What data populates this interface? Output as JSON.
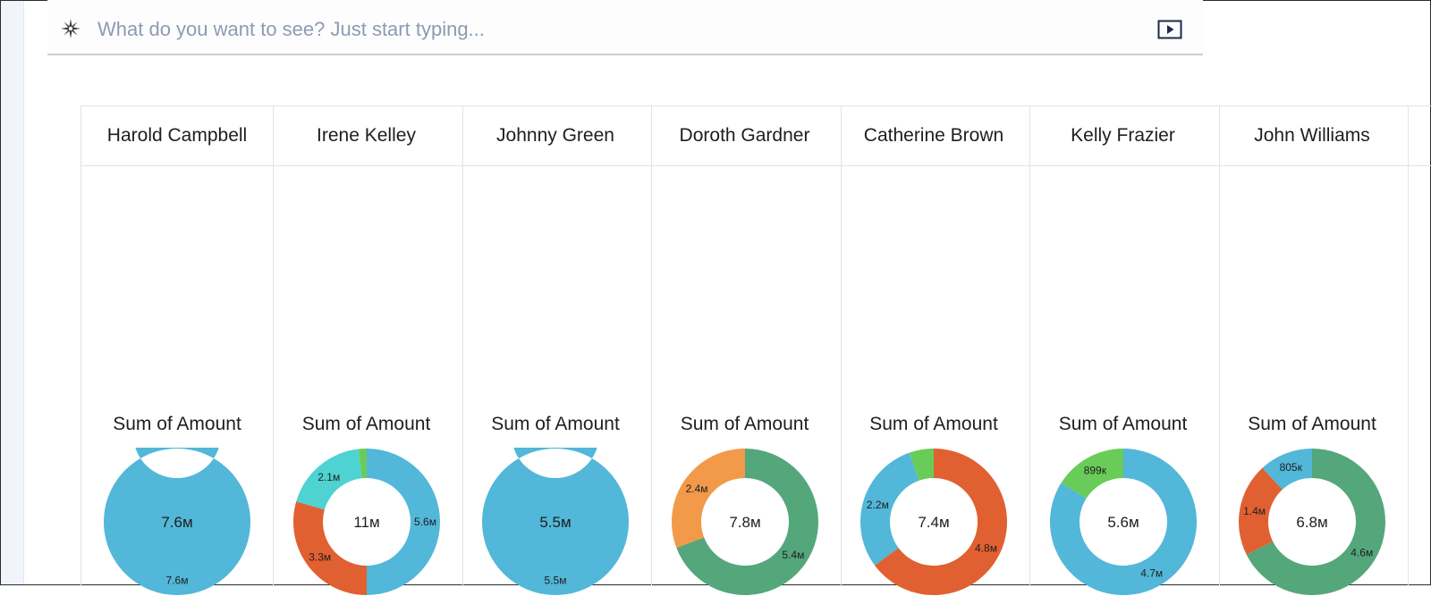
{
  "search": {
    "placeholder": "What do you want to see? Just start typing...",
    "icon": "sparkle-icon",
    "action_icon": "play-icon"
  },
  "colors": {
    "blue": "#52b7d8",
    "orange_red": "#e16032",
    "teal": "#4fd2d2",
    "green": "#54a77b",
    "light_orange": "#f2994a",
    "lime": "#6acc58"
  },
  "columns": [
    {
      "name": "Harold Campbell",
      "metric": "Sum of Amount",
      "total": "7.6м",
      "slices": [
        {
          "value": 7.6,
          "label": "7.6м",
          "color": "#52b7d8"
        }
      ]
    },
    {
      "name": "Irene Kelley",
      "metric": "Sum of Amount",
      "total": "11м",
      "slices": [
        {
          "value": 5.6,
          "label": "5.6м",
          "color": "#52b7d8"
        },
        {
          "value": 3.3,
          "label": "3.3м",
          "color": "#e16032"
        },
        {
          "value": 2.1,
          "label": "2.1м",
          "color": "#4fd2d2"
        },
        {
          "value": 0.2,
          "label": "",
          "color": "#6acc58"
        }
      ]
    },
    {
      "name": "Johnny Green",
      "metric": "Sum of Amount",
      "total": "5.5м",
      "slices": [
        {
          "value": 5.5,
          "label": "5.5м",
          "color": "#52b7d8"
        }
      ]
    },
    {
      "name": "Doroth Gardner",
      "metric": "Sum of Amount",
      "total": "7.8м",
      "slices": [
        {
          "value": 5.4,
          "label": "5.4м",
          "color": "#54a77b"
        },
        {
          "value": 2.4,
          "label": "2.4м",
          "color": "#f2994a"
        }
      ]
    },
    {
      "name": "Catherine Brown",
      "metric": "Sum of Amount",
      "total": "7.4м",
      "slices": [
        {
          "value": 4.8,
          "label": "4.8м",
          "color": "#e16032"
        },
        {
          "value": 2.2,
          "label": "2.2м",
          "color": "#52b7d8"
        },
        {
          "value": 0.4,
          "label": "",
          "color": "#6acc58"
        }
      ]
    },
    {
      "name": "Kelly Frazier",
      "metric": "Sum of Amount",
      "total": "5.6м",
      "slices": [
        {
          "value": 4.7,
          "label": "4.7м",
          "color": "#52b7d8"
        },
        {
          "value": 0.899,
          "label": "899к",
          "color": "#6acc58"
        }
      ]
    },
    {
      "name": "John Williams",
      "metric": "Sum of Amount",
      "total": "6.8м",
      "slices": [
        {
          "value": 4.6,
          "label": "4.6м",
          "color": "#54a77b"
        },
        {
          "value": 1.4,
          "label": "1.4м",
          "color": "#e16032"
        },
        {
          "value": 0.805,
          "label": "805к",
          "color": "#52b7d8"
        }
      ]
    }
  ]
}
